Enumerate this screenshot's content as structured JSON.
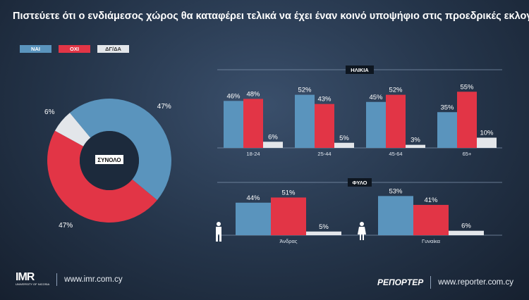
{
  "title": "Πιστεύετε ότι ο ενδιάμεσος χώρος θα καταφέρει τελικά να έχει έναν κοινό υποψήφιο στις προεδρικές εκλογές;",
  "colors": {
    "nai": "#5a94bd",
    "oxi": "#e23546",
    "dgda": "#e3e6ea"
  },
  "legend": [
    "ΝΑΙ",
    "ΟΧΙ",
    "ΔΓ/ΔΑ"
  ],
  "chart_data": [
    {
      "type": "pie",
      "center_label": "ΣΥΝΟΛΟ",
      "categories": [
        "ΝΑΙ",
        "ΟΧΙ",
        "ΔΓ/ΔΑ"
      ],
      "values": [
        47,
        47,
        6
      ],
      "labels": [
        "47%",
        "47%",
        "6%"
      ]
    },
    {
      "type": "bar",
      "title": "ΗΛΙΚΙΑ",
      "categories": [
        "18-24",
        "25-44",
        "45-64",
        "65+"
      ],
      "series": [
        {
          "name": "ΝΑΙ",
          "values": [
            46,
            52,
            45,
            35
          ]
        },
        {
          "name": "ΟΧΙ",
          "values": [
            48,
            43,
            52,
            55
          ]
        },
        {
          "name": "ΔΓ/ΔΑ",
          "values": [
            6,
            5,
            3,
            10
          ]
        }
      ]
    },
    {
      "type": "bar",
      "title": "ΦΥΛΟ",
      "categories": [
        "Άνδρας",
        "Γυναίκα"
      ],
      "series": [
        {
          "name": "ΝΑΙ",
          "values": [
            44,
            53
          ]
        },
        {
          "name": "ΟΧΙ",
          "values": [
            51,
            41
          ]
        },
        {
          "name": "ΔΓ/ΔΑ",
          "values": [
            5,
            6
          ]
        }
      ]
    }
  ],
  "footer": {
    "imr_logo": "IMR",
    "imr_logo_sub": "UNIVERSITY OF NICOSIA",
    "imr_url": "www.imr.com.cy",
    "reporter_logo": "ΡΕΠΟΡΤΕΡ",
    "reporter_url": "www.reporter.com.cy"
  }
}
